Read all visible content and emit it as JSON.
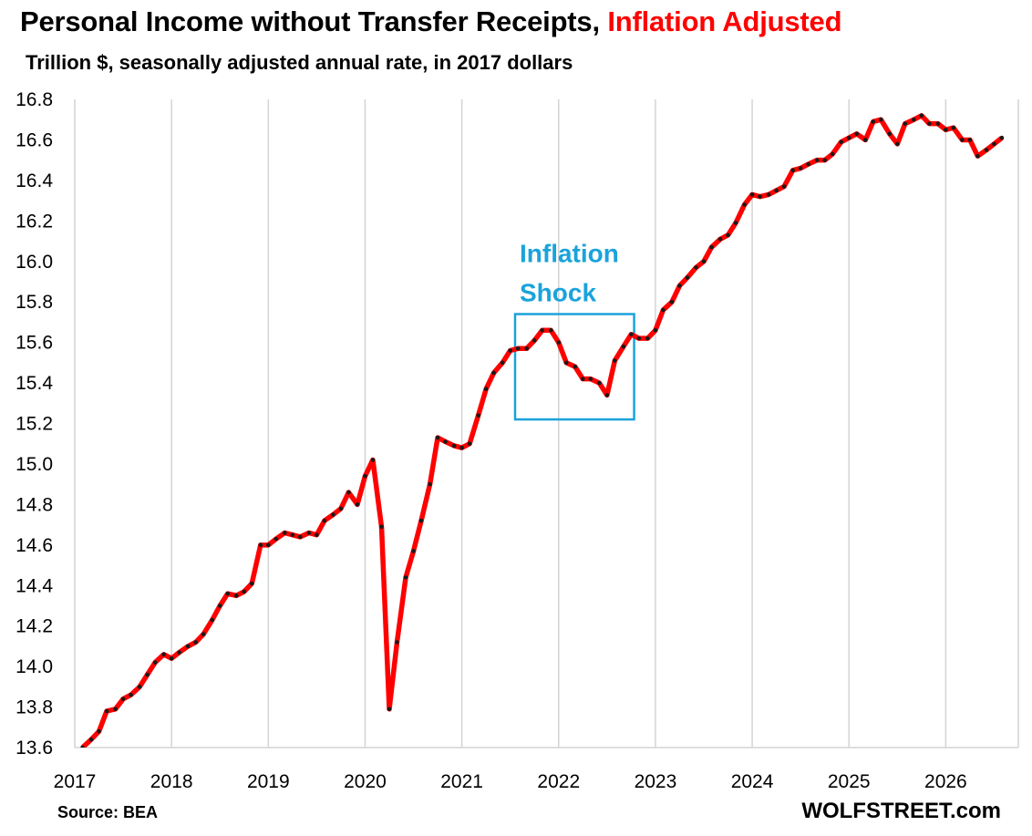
{
  "chart_data": {
    "type": "line",
    "title": "Personal Income without Transfer Receipts,",
    "title_highlight": "Inflation Adjusted",
    "subtitle": "Trillion $, seasonally adjusted annual rate, in 2017 dollars",
    "xlabel": "",
    "ylabel": "",
    "ylim": [
      13.6,
      16.8
    ],
    "yticks": [
      "13.6",
      "13.8",
      "14.0",
      "14.2",
      "14.4",
      "14.6",
      "14.8",
      "15.0",
      "15.2",
      "15.4",
      "15.6",
      "15.8",
      "16.0",
      "16.2",
      "16.4",
      "16.6",
      "16.8"
    ],
    "xlim": [
      2017,
      2026.75
    ],
    "xticks": [
      "2017",
      "2018",
      "2019",
      "2020",
      "2021",
      "2022",
      "2023",
      "2024",
      "2025",
      "2026"
    ],
    "grid": "vertical",
    "line_color": "#ff0000",
    "marker_color": "#1a1a1a",
    "annotation": {
      "text_lines": [
        "Inflation",
        "Shock"
      ],
      "color": "#1aa3db",
      "box_x": [
        2021.55,
        2022.78
      ],
      "box_y": [
        15.22,
        15.74
      ]
    },
    "series": [
      {
        "values": [
          [
            2017.08,
            13.6
          ],
          [
            2017.17,
            13.64
          ],
          [
            2017.25,
            13.68
          ],
          [
            2017.33,
            13.78
          ],
          [
            2017.42,
            13.79
          ],
          [
            2017.5,
            13.84
          ],
          [
            2017.58,
            13.86
          ],
          [
            2017.67,
            13.9
          ],
          [
            2017.75,
            13.96
          ],
          [
            2017.83,
            14.02
          ],
          [
            2017.92,
            14.06
          ],
          [
            2018.0,
            14.04
          ],
          [
            2018.08,
            14.07
          ],
          [
            2018.17,
            14.1
          ],
          [
            2018.25,
            14.12
          ],
          [
            2018.33,
            14.16
          ],
          [
            2018.42,
            14.23
          ],
          [
            2018.5,
            14.3
          ],
          [
            2018.58,
            14.36
          ],
          [
            2018.67,
            14.35
          ],
          [
            2018.75,
            14.37
          ],
          [
            2018.83,
            14.41
          ],
          [
            2018.92,
            14.6
          ],
          [
            2019.0,
            14.6
          ],
          [
            2019.08,
            14.63
          ],
          [
            2019.17,
            14.66
          ],
          [
            2019.25,
            14.65
          ],
          [
            2019.33,
            14.64
          ],
          [
            2019.42,
            14.66
          ],
          [
            2019.5,
            14.65
          ],
          [
            2019.58,
            14.72
          ],
          [
            2019.67,
            14.75
          ],
          [
            2019.75,
            14.78
          ],
          [
            2019.83,
            14.86
          ],
          [
            2019.92,
            14.8
          ],
          [
            2020.0,
            14.94
          ],
          [
            2020.08,
            15.02
          ],
          [
            2020.17,
            14.69
          ],
          [
            2020.25,
            13.79
          ],
          [
            2020.33,
            14.12
          ],
          [
            2020.42,
            14.44
          ],
          [
            2020.5,
            14.57
          ],
          [
            2020.58,
            14.72
          ],
          [
            2020.67,
            14.9
          ],
          [
            2020.75,
            15.13
          ],
          [
            2020.83,
            15.11
          ],
          [
            2020.92,
            15.09
          ],
          [
            2021.0,
            15.08
          ],
          [
            2021.08,
            15.1
          ],
          [
            2021.17,
            15.24
          ],
          [
            2021.25,
            15.37
          ],
          [
            2021.33,
            15.45
          ],
          [
            2021.42,
            15.5
          ],
          [
            2021.5,
            15.56
          ],
          [
            2021.58,
            15.57
          ],
          [
            2021.67,
            15.57
          ],
          [
            2021.75,
            15.61
          ],
          [
            2021.83,
            15.66
          ],
          [
            2021.92,
            15.66
          ],
          [
            2022.0,
            15.6
          ],
          [
            2022.08,
            15.5
          ],
          [
            2022.17,
            15.48
          ],
          [
            2022.25,
            15.42
          ],
          [
            2022.33,
            15.42
          ],
          [
            2022.42,
            15.4
          ],
          [
            2022.5,
            15.34
          ],
          [
            2022.58,
            15.51
          ],
          [
            2022.67,
            15.58
          ],
          [
            2022.75,
            15.64
          ],
          [
            2022.83,
            15.62
          ],
          [
            2022.92,
            15.62
          ],
          [
            2023.0,
            15.66
          ],
          [
            2023.08,
            15.76
          ],
          [
            2023.17,
            15.8
          ],
          [
            2023.25,
            15.88
          ],
          [
            2023.33,
            15.92
          ],
          [
            2023.42,
            15.97
          ],
          [
            2023.5,
            16.0
          ],
          [
            2023.58,
            16.07
          ],
          [
            2023.67,
            16.11
          ],
          [
            2023.75,
            16.13
          ],
          [
            2023.83,
            16.19
          ],
          [
            2023.92,
            16.28
          ],
          [
            2024.0,
            16.33
          ],
          [
            2024.08,
            16.32
          ],
          [
            2024.17,
            16.33
          ],
          [
            2024.25,
            16.35
          ],
          [
            2024.33,
            16.37
          ],
          [
            2024.42,
            16.45
          ],
          [
            2024.5,
            16.46
          ],
          [
            2024.58,
            16.48
          ],
          [
            2024.67,
            16.5
          ],
          [
            2024.75,
            16.5
          ],
          [
            2024.83,
            16.53
          ],
          [
            2024.92,
            16.59
          ],
          [
            2025.0,
            16.61
          ],
          [
            2025.08,
            16.63
          ],
          [
            2025.17,
            16.6
          ],
          [
            2025.25,
            16.69
          ],
          [
            2025.33,
            16.7
          ],
          [
            2025.42,
            16.63
          ],
          [
            2025.5,
            16.58
          ],
          [
            2025.58,
            16.68
          ],
          [
            2025.67,
            16.7
          ],
          [
            2025.75,
            16.72
          ],
          [
            2025.83,
            16.68
          ],
          [
            2025.92,
            16.68
          ],
          [
            2026.0,
            16.65
          ],
          [
            2026.08,
            16.66
          ],
          [
            2026.17,
            16.6
          ],
          [
            2026.25,
            16.6
          ],
          [
            2026.33,
            16.52
          ],
          [
            2026.42,
            16.55
          ],
          [
            2026.5,
            16.58
          ],
          [
            2026.58,
            16.61
          ]
        ]
      }
    ]
  },
  "footer": {
    "source": "Source: BEA",
    "brand": "WOLFSTREET.com"
  }
}
